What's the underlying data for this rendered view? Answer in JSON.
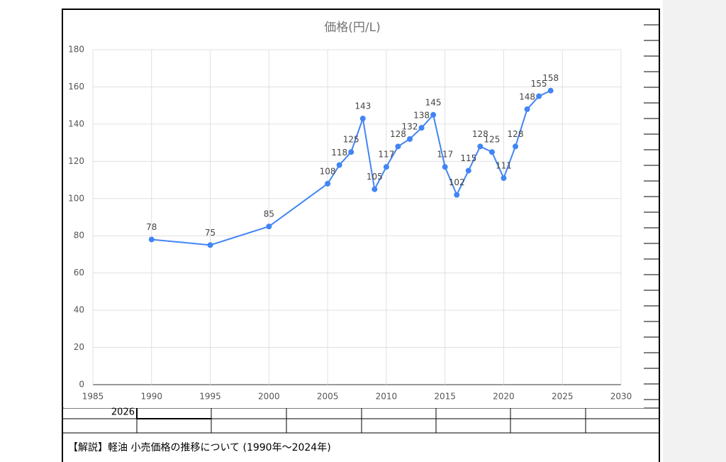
{
  "chart_data": {
    "type": "line",
    "title": "価格(円/L)",
    "x": [
      1990,
      1995,
      2000,
      2005,
      2006,
      2007,
      2008,
      2009,
      2010,
      2011,
      2012,
      2013,
      2014,
      2015,
      2016,
      2017,
      2018,
      2019,
      2020,
      2021,
      2022,
      2023,
      2024
    ],
    "values": [
      78,
      75,
      85,
      108,
      118,
      125,
      143,
      105,
      117,
      128,
      132,
      138,
      145,
      117,
      102,
      115,
      128,
      125,
      111,
      128,
      148,
      155,
      158
    ],
    "color": "#4285f4",
    "xlim": [
      1985,
      2030
    ],
    "xticks": [
      1985,
      1990,
      1995,
      2000,
      2005,
      2010,
      2015,
      2020,
      2025,
      2030
    ],
    "ylim": [
      0,
      180
    ],
    "yticks": [
      0,
      20,
      40,
      60,
      80,
      100,
      120,
      140,
      160,
      180
    ],
    "grid": true
  },
  "sheet": {
    "cell": "2026",
    "note": "【解説】軽油 小売価格の推移について (1990年〜2024年)"
  }
}
